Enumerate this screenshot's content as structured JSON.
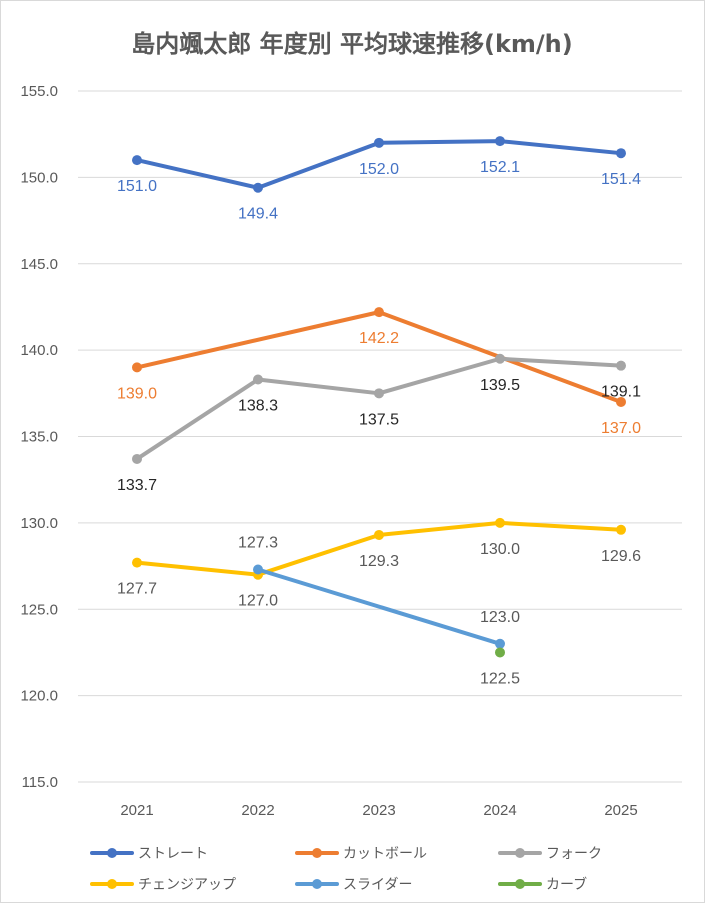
{
  "chart_data": {
    "type": "line",
    "title": "島内颯太郎 年度別 平均球速推移(km/h)",
    "categories": [
      "2021",
      "2022",
      "2023",
      "2024",
      "2025"
    ],
    "ylim": [
      115,
      155
    ],
    "yticks": [
      "115.0",
      "120.0",
      "125.0",
      "130.0",
      "135.0",
      "140.0",
      "145.0",
      "150.0",
      "155.0"
    ],
    "grid": true,
    "legend_position": "bottom",
    "series": [
      {
        "name": "ストレート",
        "color": "#4472C4",
        "label_color": "#4472C4",
        "label_pos": "below",
        "values": [
          151.0,
          149.4,
          152.0,
          152.1,
          151.4
        ],
        "labels": [
          "151.0",
          "149.4",
          "152.0",
          "152.1",
          "151.4"
        ]
      },
      {
        "name": "カットボール",
        "color": "#ED7D31",
        "label_color": "#ED7D31",
        "label_pos": "below",
        "values": [
          139.0,
          null,
          142.2,
          null,
          137.0
        ],
        "labels": [
          "139.0",
          null,
          "142.2",
          null,
          "137.0"
        ]
      },
      {
        "name": "フォーク",
        "color": "#A5A5A5",
        "label_color": "#262626",
        "label_pos": "below",
        "values": [
          133.7,
          138.3,
          137.5,
          139.5,
          139.1
        ],
        "labels": [
          "133.7",
          "138.3",
          "137.5",
          "139.5",
          "139.1"
        ]
      },
      {
        "name": "チェンジアップ",
        "color": "#FFC000",
        "label_color": "#595959",
        "label_pos": "below",
        "values": [
          127.7,
          127.0,
          129.3,
          130.0,
          129.6
        ],
        "labels": [
          "127.7",
          "127.0",
          "129.3",
          "130.0",
          "129.6"
        ]
      },
      {
        "name": "スライダー",
        "color": "#5B9BD5",
        "label_color": "#595959",
        "label_pos": "above",
        "values": [
          null,
          127.3,
          null,
          123.0,
          null
        ],
        "labels": [
          null,
          "127.3",
          null,
          "123.0",
          null
        ]
      },
      {
        "name": "カーブ",
        "color": "#70AD47",
        "label_color": "#595959",
        "label_pos": "below",
        "values": [
          null,
          null,
          null,
          122.5,
          null
        ],
        "labels": [
          null,
          null,
          null,
          "122.5",
          null
        ]
      }
    ]
  }
}
